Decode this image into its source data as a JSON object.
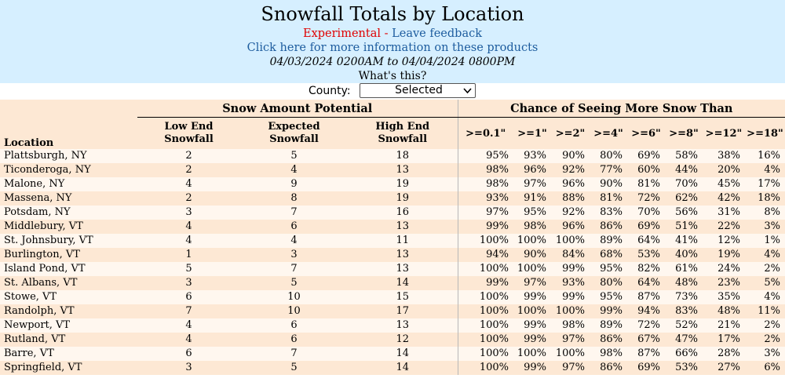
{
  "header": {
    "title": "Snowfall Totals by Location",
    "experimental": "Experimental",
    "separator": " - ",
    "feedback_link": "Leave feedback",
    "more_info_link": "Click here for more information on these products",
    "date_range": "04/03/2024 0200AM to 04/04/2024 0800PM",
    "whats_this": "What's this?"
  },
  "county": {
    "label": "County:",
    "selected": "Selected"
  },
  "table": {
    "group_headers": {
      "snow_amount": "Snow Amount Potential",
      "chance": "Chance of Seeing More Snow Than"
    },
    "columns": {
      "location": "Location",
      "low_end_1": "Low End",
      "low_end_2": "Snowfall",
      "expected_1": "Expected",
      "expected_2": "Snowfall",
      "high_end_1": "High End",
      "high_end_2": "Snowfall",
      "thresholds": [
        ">=0.1\"",
        ">=1\"",
        ">=2\"",
        ">=4\"",
        ">=6\"",
        ">=8\"",
        ">=12\"",
        ">=18\""
      ]
    },
    "rows": [
      {
        "location": "Plattsburgh, NY",
        "low": "2",
        "expected": "5",
        "high": "18",
        "pct": [
          "95%",
          "93%",
          "90%",
          "80%",
          "69%",
          "58%",
          "38%",
          "16%"
        ]
      },
      {
        "location": "Ticonderoga, NY",
        "low": "2",
        "expected": "4",
        "high": "13",
        "pct": [
          "98%",
          "96%",
          "92%",
          "77%",
          "60%",
          "44%",
          "20%",
          "4%"
        ]
      },
      {
        "location": "Malone, NY",
        "low": "4",
        "expected": "9",
        "high": "19",
        "pct": [
          "98%",
          "97%",
          "96%",
          "90%",
          "81%",
          "70%",
          "45%",
          "17%"
        ]
      },
      {
        "location": "Massena, NY",
        "low": "2",
        "expected": "8",
        "high": "19",
        "pct": [
          "93%",
          "91%",
          "88%",
          "81%",
          "72%",
          "62%",
          "42%",
          "18%"
        ]
      },
      {
        "location": "Potsdam, NY",
        "low": "3",
        "expected": "7",
        "high": "16",
        "pct": [
          "97%",
          "95%",
          "92%",
          "83%",
          "70%",
          "56%",
          "31%",
          "8%"
        ]
      },
      {
        "location": "Middlebury, VT",
        "low": "4",
        "expected": "6",
        "high": "13",
        "pct": [
          "99%",
          "98%",
          "96%",
          "86%",
          "69%",
          "51%",
          "22%",
          "3%"
        ]
      },
      {
        "location": "St. Johnsbury, VT",
        "low": "4",
        "expected": "4",
        "high": "11",
        "pct": [
          "100%",
          "100%",
          "100%",
          "89%",
          "64%",
          "41%",
          "12%",
          "1%"
        ]
      },
      {
        "location": "Burlington, VT",
        "low": "1",
        "expected": "3",
        "high": "13",
        "pct": [
          "94%",
          "90%",
          "84%",
          "68%",
          "53%",
          "40%",
          "19%",
          "4%"
        ]
      },
      {
        "location": "Island Pond, VT",
        "low": "5",
        "expected": "7",
        "high": "13",
        "pct": [
          "100%",
          "100%",
          "99%",
          "95%",
          "82%",
          "61%",
          "24%",
          "2%"
        ]
      },
      {
        "location": "St. Albans, VT",
        "low": "3",
        "expected": "5",
        "high": "14",
        "pct": [
          "99%",
          "97%",
          "93%",
          "80%",
          "64%",
          "48%",
          "23%",
          "5%"
        ]
      },
      {
        "location": "Stowe, VT",
        "low": "6",
        "expected": "10",
        "high": "15",
        "pct": [
          "100%",
          "99%",
          "99%",
          "95%",
          "87%",
          "73%",
          "35%",
          "4%"
        ]
      },
      {
        "location": "Randolph, VT",
        "low": "7",
        "expected": "10",
        "high": "17",
        "pct": [
          "100%",
          "100%",
          "100%",
          "99%",
          "94%",
          "83%",
          "48%",
          "11%"
        ]
      },
      {
        "location": "Newport, VT",
        "low": "4",
        "expected": "6",
        "high": "13",
        "pct": [
          "100%",
          "99%",
          "98%",
          "89%",
          "72%",
          "52%",
          "21%",
          "2%"
        ]
      },
      {
        "location": "Rutland, VT",
        "low": "4",
        "expected": "6",
        "high": "12",
        "pct": [
          "100%",
          "99%",
          "97%",
          "86%",
          "67%",
          "47%",
          "17%",
          "2%"
        ]
      },
      {
        "location": "Barre, VT",
        "low": "6",
        "expected": "7",
        "high": "14",
        "pct": [
          "100%",
          "100%",
          "100%",
          "98%",
          "87%",
          "66%",
          "28%",
          "3%"
        ]
      },
      {
        "location": "Springfield, VT",
        "low": "3",
        "expected": "5",
        "high": "14",
        "pct": [
          "100%",
          "99%",
          "97%",
          "86%",
          "69%",
          "53%",
          "27%",
          "6%"
        ]
      }
    ]
  },
  "colors": {
    "header_bg": "#d6efff",
    "row_even": "#fde8d4",
    "row_odd": "#fff7ef",
    "experimental": "#e00000",
    "link": "#1d5c9e"
  }
}
